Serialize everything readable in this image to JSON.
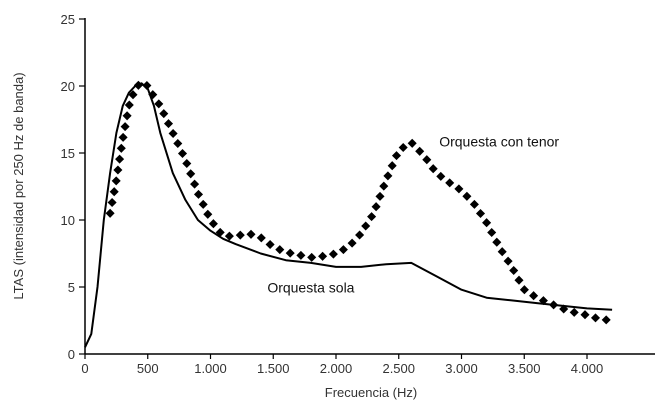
{
  "chart_data": {
    "type": "line",
    "xlabel": "Frecuencia (Hz)",
    "ylabel": "LTAS (intensidad por 250 Hz de banda)",
    "xlim": [
      0,
      4200
    ],
    "ylim": [
      0,
      25
    ],
    "x_ticks": [
      0,
      500,
      1000,
      1500,
      2000,
      2500,
      3000,
      3500,
      4000
    ],
    "x_tick_labels": [
      "0",
      "500",
      "1.000",
      "1.500",
      "2.000",
      "2.500",
      "3.000",
      "3.500",
      "4.000"
    ],
    "y_ticks": [
      0,
      5,
      10,
      15,
      20,
      25
    ],
    "y_tick_labels": [
      "0",
      "5",
      "10",
      "15",
      "20",
      "25"
    ],
    "grid": false,
    "series": [
      {
        "name": "Orquesta sola",
        "style": "solid",
        "color": "#000000",
        "x": [
          0,
          50,
          100,
          150,
          200,
          250,
          300,
          350,
          400,
          450,
          500,
          550,
          600,
          700,
          800,
          900,
          1000,
          1100,
          1200,
          1400,
          1600,
          1800,
          2000,
          2200,
          2400,
          2600,
          2800,
          3000,
          3200,
          3400,
          3600,
          3800,
          4000,
          4200
        ],
        "y": [
          0.5,
          1.5,
          5,
          10,
          13.5,
          16.5,
          18.5,
          19.5,
          20,
          20.2,
          19.8,
          18.5,
          16.5,
          13.5,
          11.5,
          10,
          9.2,
          8.6,
          8.2,
          7.5,
          7.0,
          6.8,
          6.5,
          6.5,
          6.7,
          6.8,
          5.8,
          4.8,
          4.2,
          4.0,
          3.8,
          3.6,
          3.4,
          3.3
        ]
      },
      {
        "name": "Orquesta con tenor",
        "style": "dotted",
        "color": "#000000",
        "x": [
          200,
          250,
          300,
          350,
          400,
          450,
          500,
          550,
          600,
          650,
          700,
          750,
          800,
          900,
          1000,
          1100,
          1200,
          1300,
          1400,
          1500,
          1600,
          1700,
          1800,
          1900,
          2000,
          2100,
          2200,
          2300,
          2400,
          2500,
          2600,
          2700,
          2800,
          2900,
          3000,
          3100,
          3200,
          3300,
          3400,
          3500,
          3600,
          3700,
          3800,
          3900,
          4000,
          4100,
          4200
        ],
        "y": [
          10.5,
          13,
          16,
          18.5,
          19.8,
          20.3,
          20,
          19.2,
          18.5,
          17.5,
          16.5,
          15.5,
          14.5,
          12,
          10,
          8.8,
          8.8,
          9.0,
          8.7,
          8.0,
          7.6,
          7.4,
          7.2,
          7.3,
          7.5,
          8.0,
          9.0,
          10.5,
          13.0,
          15.2,
          15.8,
          14.8,
          13.5,
          12.8,
          12.2,
          11.2,
          9.8,
          8.0,
          6.5,
          4.8,
          4.2,
          3.8,
          3.4,
          3.1,
          2.9,
          2.6,
          2.5
        ]
      }
    ],
    "annotations": [
      {
        "text": "Orquesta con tenor",
        "x": 3300,
        "y": 15.5
      },
      {
        "text": "Orquesta sola",
        "x": 1800,
        "y": 4.6
      }
    ]
  }
}
